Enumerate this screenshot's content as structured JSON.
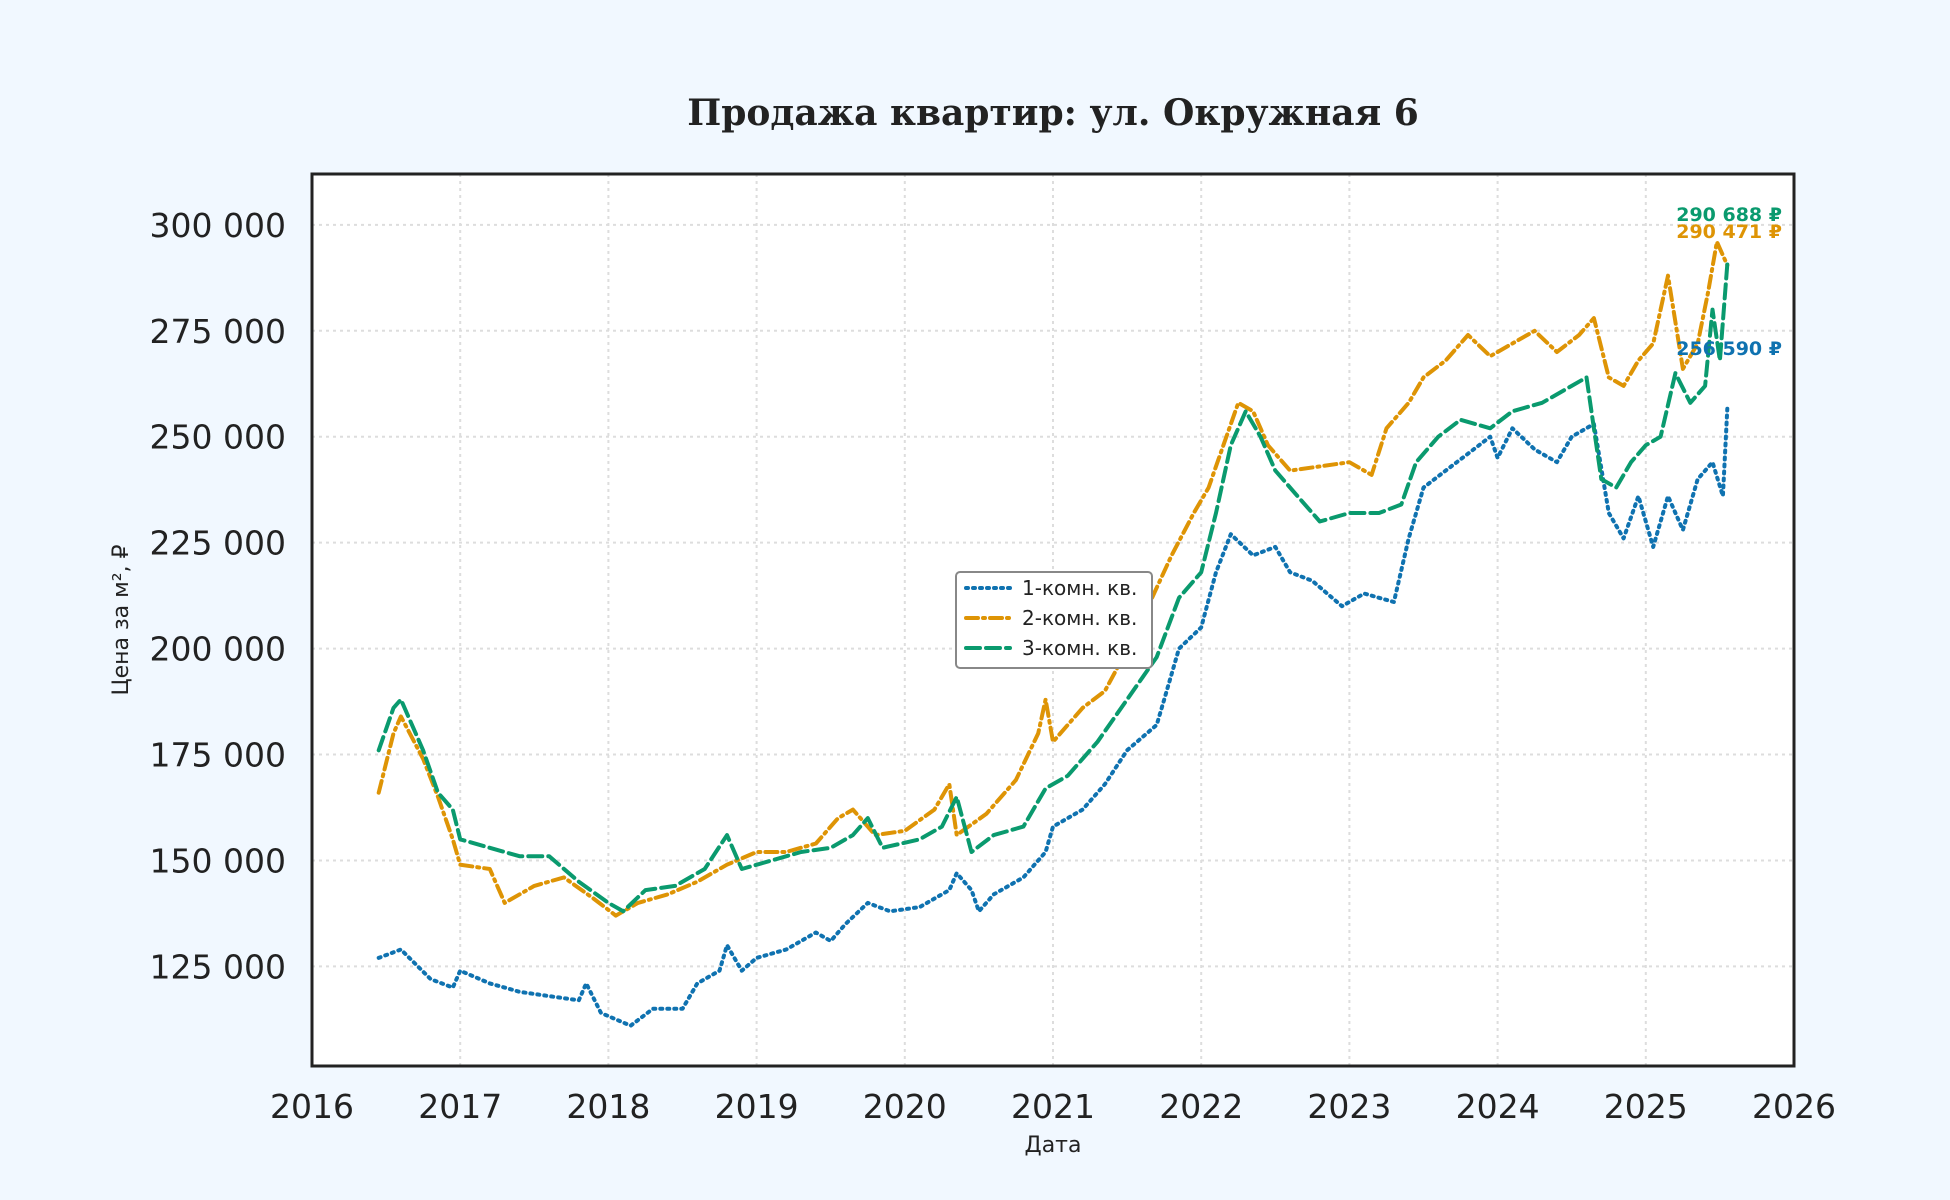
{
  "chart_data": {
    "type": "line",
    "title": "Продажа квартир: ул. Окружная 6",
    "xlabel": "Дата",
    "ylabel": "Цена за м², ₽",
    "xlim": [
      2016,
      2026
    ],
    "ylim": [
      101500,
      312000
    ],
    "x_ticks": [
      2016,
      2017,
      2018,
      2019,
      2020,
      2021,
      2022,
      2023,
      2024,
      2025,
      2026
    ],
    "y_ticks": [
      125000,
      150000,
      175000,
      200000,
      225000,
      250000,
      275000,
      300000
    ],
    "y_tick_labels": [
      "125 000",
      "150 000",
      "175 000",
      "200 000",
      "225 000",
      "250 000",
      "275 000",
      "300 000"
    ],
    "grid": true,
    "legend_position": "center",
    "colors": {
      "series_1": "#0f72b0",
      "series_2": "#de9405",
      "series_3": "#0a9a6e",
      "background": "#f1f8ff",
      "plot_bg": "#ffffff"
    },
    "series": [
      {
        "name": "1-комн. кв.",
        "color": "#0f72b0",
        "style": "dotted",
        "end_label": "256 590 ₽",
        "points": [
          [
            2016.45,
            127000
          ],
          [
            2016.6,
            129000
          ],
          [
            2016.8,
            122000
          ],
          [
            2016.95,
            120000
          ],
          [
            2017.0,
            124000
          ],
          [
            2017.2,
            121000
          ],
          [
            2017.4,
            119000
          ],
          [
            2017.6,
            118000
          ],
          [
            2017.8,
            117000
          ],
          [
            2017.85,
            121000
          ],
          [
            2017.95,
            114000
          ],
          [
            2018.15,
            111000
          ],
          [
            2018.3,
            115000
          ],
          [
            2018.5,
            115000
          ],
          [
            2018.6,
            121000
          ],
          [
            2018.75,
            124000
          ],
          [
            2018.8,
            130000
          ],
          [
            2018.9,
            124000
          ],
          [
            2019.0,
            127000
          ],
          [
            2019.2,
            129000
          ],
          [
            2019.4,
            133000
          ],
          [
            2019.5,
            131000
          ],
          [
            2019.6,
            135000
          ],
          [
            2019.75,
            140000
          ],
          [
            2019.9,
            138000
          ],
          [
            2020.1,
            139000
          ],
          [
            2020.3,
            143000
          ],
          [
            2020.35,
            147000
          ],
          [
            2020.45,
            143000
          ],
          [
            2020.5,
            138000
          ],
          [
            2020.6,
            142000
          ],
          [
            2020.8,
            146000
          ],
          [
            2020.95,
            152000
          ],
          [
            2021.0,
            158000
          ],
          [
            2021.2,
            162000
          ],
          [
            2021.35,
            168000
          ],
          [
            2021.5,
            176000
          ],
          [
            2021.7,
            182000
          ],
          [
            2021.75,
            188000
          ],
          [
            2021.85,
            200000
          ],
          [
            2022.0,
            205000
          ],
          [
            2022.1,
            218000
          ],
          [
            2022.2,
            227000
          ],
          [
            2022.35,
            222000
          ],
          [
            2022.5,
            224000
          ],
          [
            2022.6,
            218000
          ],
          [
            2022.75,
            216000
          ],
          [
            2022.95,
            210000
          ],
          [
            2023.1,
            213000
          ],
          [
            2023.2,
            212000
          ],
          [
            2023.3,
            211000
          ],
          [
            2023.4,
            226000
          ],
          [
            2023.5,
            238000
          ],
          [
            2023.65,
            242000
          ],
          [
            2023.8,
            246000
          ],
          [
            2023.95,
            250000
          ],
          [
            2024.0,
            245000
          ],
          [
            2024.1,
            252000
          ],
          [
            2024.25,
            247000
          ],
          [
            2024.4,
            244000
          ],
          [
            2024.5,
            250000
          ],
          [
            2024.65,
            253000
          ],
          [
            2024.75,
            232000
          ],
          [
            2024.85,
            226000
          ],
          [
            2024.95,
            236000
          ],
          [
            2025.05,
            224000
          ],
          [
            2025.15,
            236000
          ],
          [
            2025.25,
            228000
          ],
          [
            2025.35,
            240000
          ],
          [
            2025.45,
            244000
          ],
          [
            2025.52,
            236000
          ],
          [
            2025.55,
            256590
          ]
        ]
      },
      {
        "name": "2-комн. кв.",
        "color": "#de9405",
        "style": "dashdot",
        "end_label": "290 471 ₽",
        "points": [
          [
            2016.45,
            166000
          ],
          [
            2016.55,
            180000
          ],
          [
            2016.6,
            184000
          ],
          [
            2016.75,
            174000
          ],
          [
            2016.85,
            165000
          ],
          [
            2016.95,
            155000
          ],
          [
            2017.0,
            149000
          ],
          [
            2017.2,
            148000
          ],
          [
            2017.3,
            140000
          ],
          [
            2017.5,
            144000
          ],
          [
            2017.7,
            146000
          ],
          [
            2017.9,
            141000
          ],
          [
            2018.05,
            137000
          ],
          [
            2018.2,
            140000
          ],
          [
            2018.4,
            142000
          ],
          [
            2018.6,
            145000
          ],
          [
            2018.8,
            149000
          ],
          [
            2019.0,
            152000
          ],
          [
            2019.2,
            152000
          ],
          [
            2019.4,
            154000
          ],
          [
            2019.55,
            160000
          ],
          [
            2019.65,
            162000
          ],
          [
            2019.8,
            156000
          ],
          [
            2020.0,
            157000
          ],
          [
            2020.2,
            162000
          ],
          [
            2020.3,
            168000
          ],
          [
            2020.35,
            156000
          ],
          [
            2020.55,
            161000
          ],
          [
            2020.75,
            169000
          ],
          [
            2020.9,
            180000
          ],
          [
            2020.95,
            188000
          ],
          [
            2021.0,
            178000
          ],
          [
            2021.2,
            186000
          ],
          [
            2021.35,
            190000
          ],
          [
            2021.55,
            203000
          ],
          [
            2021.8,
            222000
          ],
          [
            2021.95,
            232000
          ],
          [
            2022.05,
            238000
          ],
          [
            2022.15,
            248000
          ],
          [
            2022.25,
            258000
          ],
          [
            2022.35,
            256000
          ],
          [
            2022.45,
            248000
          ],
          [
            2022.6,
            242000
          ],
          [
            2022.8,
            243000
          ],
          [
            2023.0,
            244000
          ],
          [
            2023.15,
            241000
          ],
          [
            2023.25,
            252000
          ],
          [
            2023.4,
            258000
          ],
          [
            2023.5,
            264000
          ],
          [
            2023.65,
            268000
          ],
          [
            2023.8,
            274000
          ],
          [
            2023.95,
            269000
          ],
          [
            2024.1,
            272000
          ],
          [
            2024.25,
            275000
          ],
          [
            2024.4,
            270000
          ],
          [
            2024.55,
            274000
          ],
          [
            2024.65,
            278000
          ],
          [
            2024.75,
            264000
          ],
          [
            2024.85,
            262000
          ],
          [
            2024.95,
            268000
          ],
          [
            2025.05,
            272000
          ],
          [
            2025.15,
            288000
          ],
          [
            2025.25,
            266000
          ],
          [
            2025.35,
            272000
          ],
          [
            2025.42,
            284000
          ],
          [
            2025.48,
            296000
          ],
          [
            2025.55,
            290471
          ]
        ]
      },
      {
        "name": "3-комн. кв.",
        "color": "#0a9a6e",
        "style": "dashed",
        "end_label": "290 688 ₽",
        "points": [
          [
            2016.45,
            176000
          ],
          [
            2016.55,
            186000
          ],
          [
            2016.6,
            188000
          ],
          [
            2016.75,
            176000
          ],
          [
            2016.85,
            166000
          ],
          [
            2016.95,
            162000
          ],
          [
            2017.0,
            155000
          ],
          [
            2017.2,
            153000
          ],
          [
            2017.4,
            151000
          ],
          [
            2017.6,
            151000
          ],
          [
            2017.8,
            145000
          ],
          [
            2018.0,
            140000
          ],
          [
            2018.1,
            138000
          ],
          [
            2018.25,
            143000
          ],
          [
            2018.45,
            144000
          ],
          [
            2018.65,
            148000
          ],
          [
            2018.8,
            156000
          ],
          [
            2018.9,
            148000
          ],
          [
            2019.1,
            150000
          ],
          [
            2019.3,
            152000
          ],
          [
            2019.5,
            153000
          ],
          [
            2019.65,
            156000
          ],
          [
            2019.75,
            160000
          ],
          [
            2019.85,
            153000
          ],
          [
            2020.1,
            155000
          ],
          [
            2020.25,
            158000
          ],
          [
            2020.35,
            165000
          ],
          [
            2020.45,
            152000
          ],
          [
            2020.6,
            156000
          ],
          [
            2020.8,
            158000
          ],
          [
            2020.95,
            167000
          ],
          [
            2021.1,
            170000
          ],
          [
            2021.3,
            178000
          ],
          [
            2021.5,
            188000
          ],
          [
            2021.7,
            198000
          ],
          [
            2021.85,
            212000
          ],
          [
            2022.0,
            218000
          ],
          [
            2022.1,
            232000
          ],
          [
            2022.2,
            248000
          ],
          [
            2022.3,
            256000
          ],
          [
            2022.4,
            250000
          ],
          [
            2022.5,
            242000
          ],
          [
            2022.65,
            236000
          ],
          [
            2022.8,
            230000
          ],
          [
            2023.0,
            232000
          ],
          [
            2023.2,
            232000
          ],
          [
            2023.35,
            234000
          ],
          [
            2023.45,
            244000
          ],
          [
            2023.6,
            250000
          ],
          [
            2023.75,
            254000
          ],
          [
            2023.95,
            252000
          ],
          [
            2024.1,
            256000
          ],
          [
            2024.3,
            258000
          ],
          [
            2024.5,
            262000
          ],
          [
            2024.6,
            264000
          ],
          [
            2024.7,
            240000
          ],
          [
            2024.8,
            238000
          ],
          [
            2024.9,
            244000
          ],
          [
            2025.0,
            248000
          ],
          [
            2025.1,
            250000
          ],
          [
            2025.2,
            265000
          ],
          [
            2025.3,
            258000
          ],
          [
            2025.4,
            262000
          ],
          [
            2025.45,
            280000
          ],
          [
            2025.5,
            268000
          ],
          [
            2025.55,
            290688
          ]
        ]
      }
    ]
  }
}
